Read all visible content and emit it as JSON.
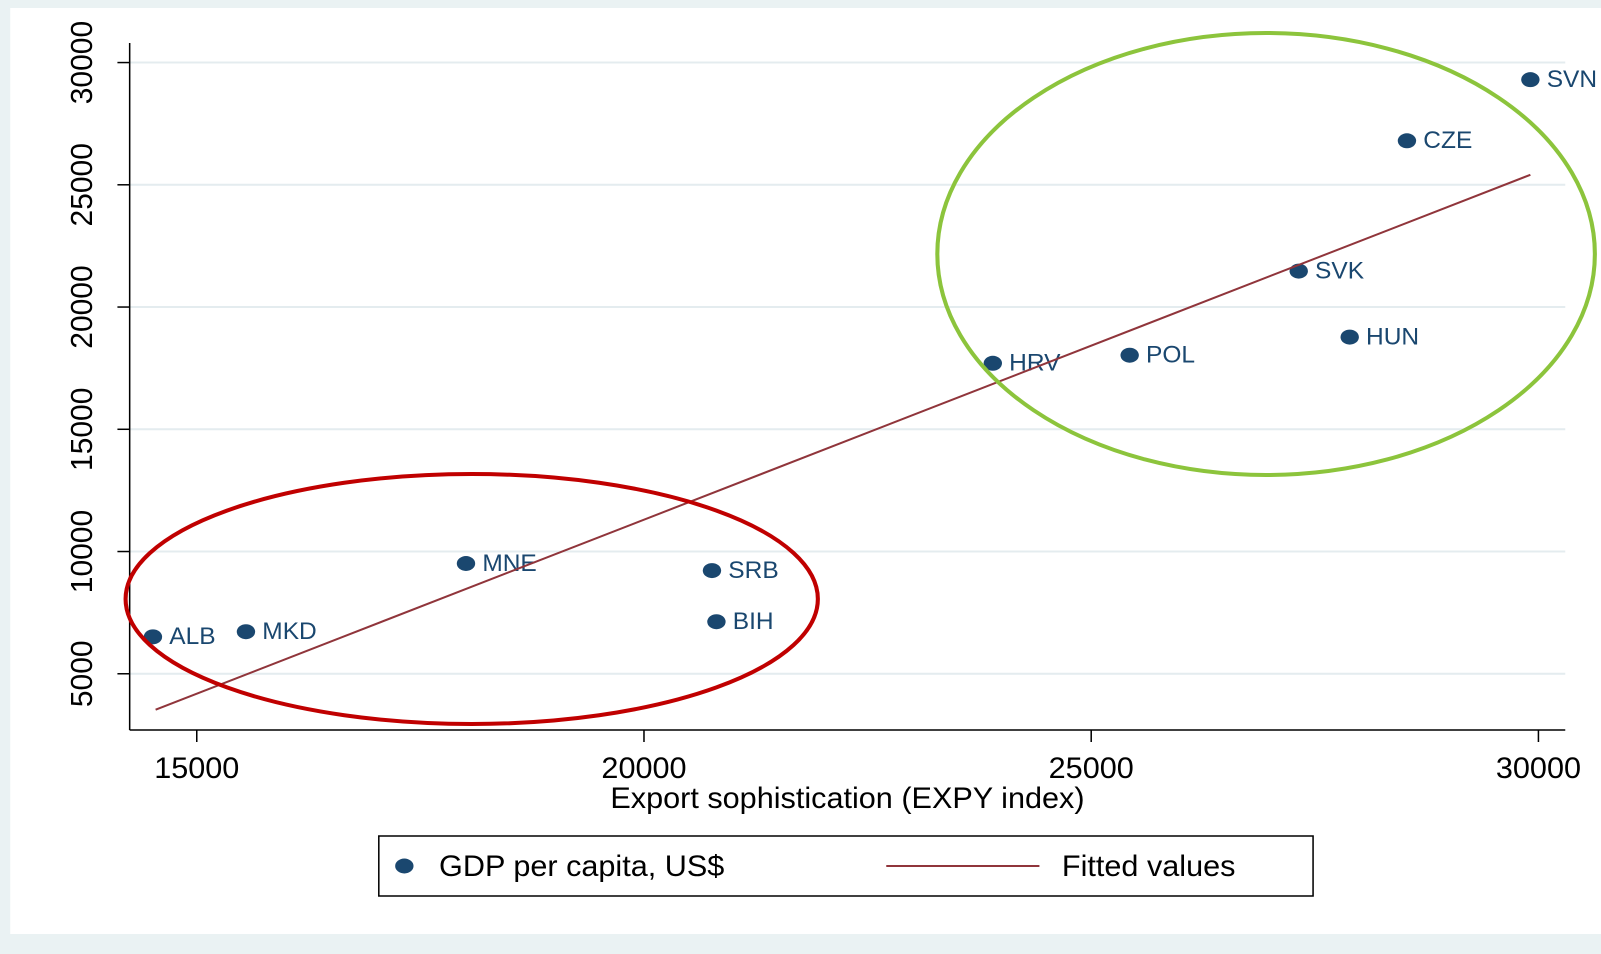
{
  "chart_data": {
    "type": "scatter",
    "x_label": "Export sophistication (EXPY index)",
    "xlim": [
      14250,
      30300
    ],
    "xticks": [
      15000,
      20000,
      25000,
      30000
    ],
    "ylim": [
      2700,
      30800
    ],
    "yticks": [
      5000,
      10000,
      15000,
      20000,
      25000,
      30000
    ],
    "grid": true,
    "legend": "bottom",
    "series": [
      {
        "name": "GDP per capita, US$",
        "color": "#1a476f",
        "labels": [
          "ALB",
          "MKD",
          "MNE",
          "SRB",
          "BIH",
          "HRV",
          "POL",
          "SVK",
          "HUN",
          "CZE",
          "SVN"
        ],
        "x": [
          14510,
          15550,
          18010,
          20760,
          20810,
          23900,
          25430,
          27320,
          27890,
          28530,
          29910
        ],
        "values": [
          6510,
          6720,
          9510,
          9220,
          7130,
          17700,
          18030,
          21470,
          18770,
          26800,
          29300
        ]
      },
      {
        "name": "Fitted values",
        "type": "line",
        "color": "#90353b",
        "x": [
          14540,
          29910
        ],
        "values": [
          3530,
          25410
        ]
      }
    ]
  }
}
